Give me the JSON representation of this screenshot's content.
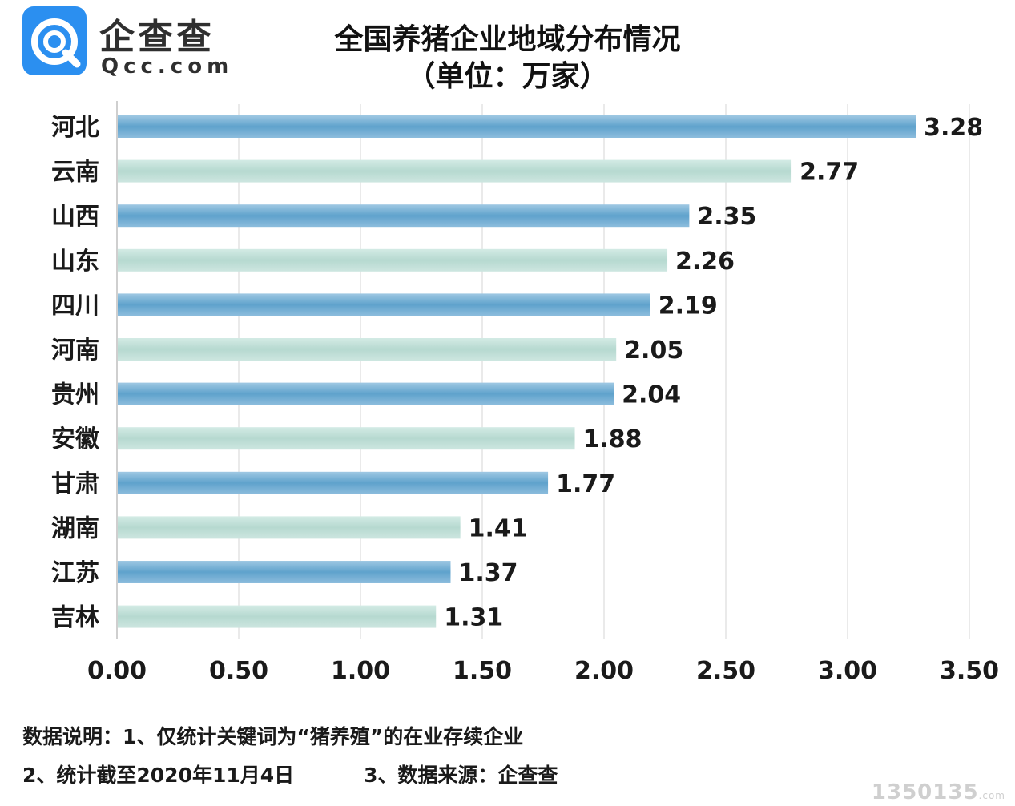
{
  "brand": {
    "name": "企查查",
    "domain": "Qcc.com"
  },
  "chart_data": {
    "type": "bar",
    "orientation": "horizontal",
    "title": "全国养猪企业地域分布情况",
    "subtitle": "（单位：万家）",
    "categories": [
      "河北",
      "云南",
      "山西",
      "山东",
      "四川",
      "河南",
      "贵州",
      "安徽",
      "甘肃",
      "湖南",
      "江苏",
      "吉林"
    ],
    "values": [
      3.28,
      2.77,
      2.35,
      2.26,
      2.19,
      2.05,
      2.04,
      1.88,
      1.77,
      1.41,
      1.37,
      1.31
    ],
    "value_labels": [
      "3.28",
      "2.77",
      "2.35",
      "2.26",
      "2.19",
      "2.05",
      "2.04",
      "1.88",
      "1.77",
      "1.41",
      "1.37",
      "1.31"
    ],
    "xlim": [
      0,
      3.5
    ],
    "xticks": [
      "0.00",
      "0.50",
      "1.00",
      "1.50",
      "2.00",
      "2.50",
      "3.00",
      "3.50"
    ],
    "grid": "vertical",
    "colors": {
      "primary": "#6aa9cf",
      "alternate": "#bcddd5",
      "grid": "#dcdcdc",
      "axis": "#cfcfcf"
    }
  },
  "notes": {
    "line1": "数据说明：1、仅统计关键词为“猪养殖”的在业存续企业",
    "line2a": "2、统计截至2020年11月4日",
    "line2b": "3、数据来源：企查查"
  },
  "watermark": {
    "text": "1350135",
    "suffix": ".com"
  }
}
